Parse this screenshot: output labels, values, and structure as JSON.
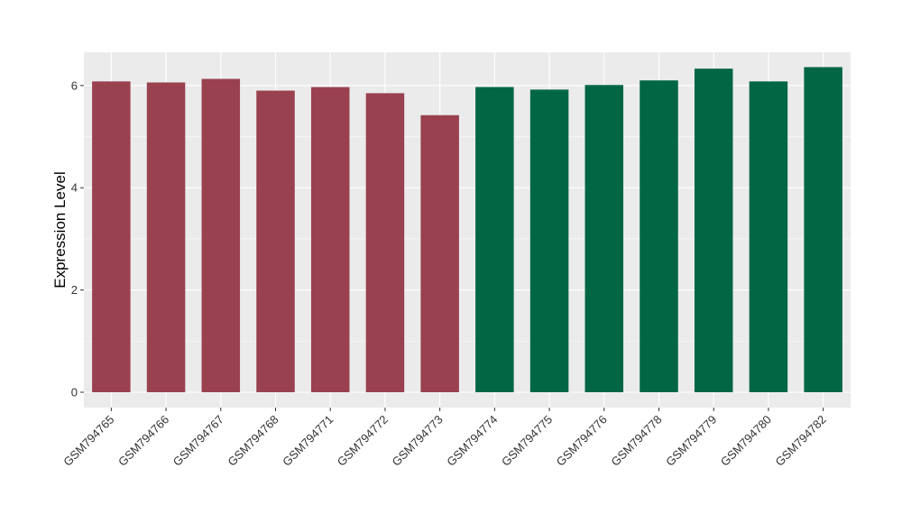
{
  "chart_data": {
    "type": "bar",
    "title": "",
    "xlabel": "",
    "ylabel": "Expression Level",
    "ylim": [
      -0.3,
      6.65
    ],
    "yticks": [
      0,
      2,
      4,
      6
    ],
    "grid": true,
    "legend": "none",
    "categories": [
      "GSM794765",
      "GSM794766",
      "GSM794767",
      "GSM794768",
      "GSM794771",
      "GSM794772",
      "GSM794773",
      "GSM794774",
      "GSM794775",
      "GSM794776",
      "GSM794778",
      "GSM794779",
      "GSM794780",
      "GSM794782"
    ],
    "values": [
      6.08,
      6.06,
      6.13,
      5.9,
      5.97,
      5.85,
      5.42,
      5.97,
      5.92,
      6.01,
      6.1,
      6.33,
      6.08,
      6.36
    ],
    "groups": [
      "g1",
      "g1",
      "g1",
      "g1",
      "g1",
      "g1",
      "g1",
      "g2",
      "g2",
      "g2",
      "g2",
      "g2",
      "g2",
      "g2"
    ],
    "colors": {
      "g1": "#99414f",
      "g2": "#006644"
    },
    "panel_background": "#ebebeb",
    "grid_color": "#ffffff"
  }
}
